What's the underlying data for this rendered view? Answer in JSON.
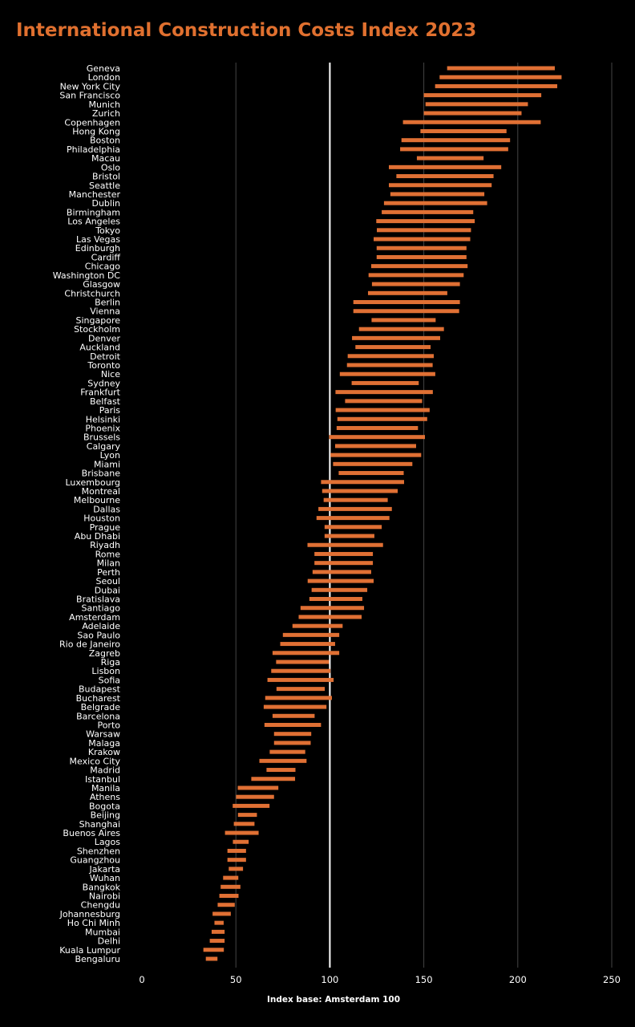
{
  "chart_data": {
    "type": "bar",
    "subtype": "range",
    "title": "International Construction Costs Index 2023",
    "xlabel": "Index base: Amsterdam 100",
    "ylabel": "",
    "xlim": [
      0,
      250
    ],
    "xticks": [
      0,
      50,
      100,
      150,
      200,
      250
    ],
    "reference_line": 100,
    "grid": true,
    "bar_color": "#e07034",
    "categories": [
      "Geneva",
      "London",
      "New York City",
      "San Francisco",
      "Munich",
      "Zurich",
      "Copenhagen",
      "Hong Kong",
      "Boston",
      "Philadelphia",
      "Macau",
      "Oslo",
      "Bristol",
      "Seattle",
      "Manchester",
      "Dublin",
      "Birmingham",
      "Los Angeles",
      "Tokyo",
      "Las Vegas",
      "Edinburgh",
      "Cardiff",
      "Chicago",
      "Washington DC",
      "Glasgow",
      "Christchurch",
      "Berlin",
      "Vienna",
      "Singapore",
      "Stockholm",
      "Denver",
      "Auckland",
      "Detroit",
      "Toronto",
      "Nice",
      "Sydney",
      "Frankfurt",
      "Belfast",
      "Paris",
      "Helsinki",
      "Phoenix",
      "Brussels",
      "Calgary",
      "Lyon",
      "Miami",
      "Brisbane",
      "Luxembourg",
      "Montreal",
      "Melbourne",
      "Dallas",
      "Houston",
      "Prague",
      "Abu Dhabi",
      "Riyadh",
      "Rome",
      "Milan",
      "Perth",
      "Seoul",
      "Dubai",
      "Bratislava",
      "Santiago",
      "Amsterdam",
      "Adelaide",
      "Sao Paulo",
      "Rio de Janeiro",
      "Zagreb",
      "Riga",
      "Lisbon",
      "Sofia",
      "Budapest",
      "Bucharest",
      "Belgrade",
      "Barcelona",
      "Porto",
      "Warsaw",
      "Malaga",
      "Krakow",
      "Mexico City",
      "Madrid",
      "Istanbul",
      "Manila",
      "Athens",
      "Bogota",
      "Beijing",
      "Shanghai",
      "Buenos Aires",
      "Lagos",
      "Shenzhen",
      "Guangzhou",
      "Jakarta",
      "Wuhan",
      "Bangkok",
      "Nairobi",
      "Chengdu",
      "Johannesburg",
      "Ho Chi Minh",
      "Mumbai",
      "Delhi",
      "Kuala Lumpur",
      "Bengaluru"
    ],
    "series": [
      {
        "name": "low",
        "values": [
          162.4,
          158.4,
          156.0,
          150.0,
          150.9,
          150.0,
          138.9,
          148.2,
          138.1,
          137.4,
          146.3,
          131.4,
          135.4,
          131.4,
          132.2,
          128.8,
          127.6,
          124.7,
          125.0,
          123.3,
          124.9,
          124.9,
          122.0,
          120.6,
          122.4,
          120.3,
          112.5,
          112.5,
          122.2,
          115.5,
          111.8,
          113.6,
          109.5,
          109.1,
          105.3,
          111.6,
          103.0,
          108.1,
          103.1,
          104.0,
          103.6,
          99.6,
          102.8,
          100.3,
          101.7,
          104.7,
          95.3,
          95.9,
          96.7,
          93.9,
          92.9,
          97.2,
          97.2,
          88.1,
          91.8,
          91.8,
          90.8,
          88.2,
          90.3,
          89.1,
          84.4,
          83.4,
          80.1,
          75.0,
          73.6,
          69.5,
          71.4,
          68.8,
          66.8,
          71.6,
          65.6,
          64.8,
          69.5,
          65.2,
          70.3,
          70.3,
          68.0,
          62.5,
          66.3,
          58.2,
          51.0,
          50.1,
          48.3,
          51.1,
          48.9,
          44.2,
          48.4,
          45.5,
          45.5,
          46.2,
          43.2,
          41.9,
          41.2,
          40.3,
          37.6,
          38.6,
          37.1,
          36.1,
          32.7,
          34.0
        ]
      },
      {
        "name": "high",
        "values": [
          219.7,
          223.3,
          221.0,
          212.5,
          205.4,
          202.0,
          212.2,
          194.0,
          195.9,
          194.9,
          181.8,
          191.2,
          187.1,
          186.1,
          182.2,
          183.7,
          176.3,
          177.1,
          175.1,
          174.7,
          172.7,
          172.7,
          173.3,
          171.2,
          169.2,
          162.5,
          169.2,
          168.8,
          156.3,
          160.7,
          158.7,
          153.6,
          155.3,
          154.7,
          156.1,
          147.3,
          154.8,
          149.1,
          153.1,
          151.8,
          146.9,
          150.6,
          145.9,
          148.6,
          143.9,
          139.3,
          139.5,
          136.1,
          130.8,
          133.0,
          131.7,
          127.6,
          123.7,
          128.3,
          122.9,
          122.9,
          122.0,
          123.3,
          119.9,
          117.3,
          118.2,
          116.9,
          106.8,
          105.0,
          102.8,
          105.0,
          99.6,
          100.3,
          102.0,
          97.3,
          101.1,
          98.2,
          91.9,
          95.3,
          90.1,
          89.8,
          86.9,
          87.6,
          81.7,
          81.5,
          72.6,
          70.3,
          67.9,
          61.2,
          59.9,
          62.1,
          56.8,
          55.4,
          55.4,
          53.8,
          51.3,
          52.4,
          51.4,
          49.4,
          47.3,
          43.5,
          44.0,
          44.0,
          43.6,
          40.2
        ]
      }
    ]
  }
}
